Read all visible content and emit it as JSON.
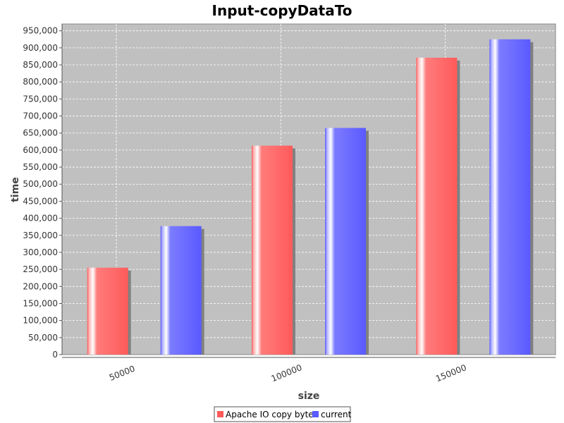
{
  "chart_data": {
    "type": "bar",
    "title": "Input-copyDataTo",
    "xlabel": "size",
    "ylabel": "time",
    "categories": [
      "50000",
      "100000",
      "150000"
    ],
    "series": [
      {
        "name": "Apache IO copy bytes",
        "color": "#ff5a5a",
        "values": [
          255000,
          613000,
          871000
        ]
      },
      {
        "name": "current",
        "color": "#5a5aff",
        "values": [
          377000,
          665000,
          925000
        ]
      }
    ],
    "ylim": [
      0,
      970000
    ],
    "yticks": [
      0,
      50000,
      100000,
      150000,
      200000,
      250000,
      300000,
      350000,
      400000,
      450000,
      500000,
      550000,
      600000,
      650000,
      700000,
      750000,
      800000,
      850000,
      900000,
      950000
    ],
    "ytick_labels": [
      "0",
      "50,000",
      "100,000",
      "150,000",
      "200,000",
      "250,000",
      "300,000",
      "350,000",
      "400,000",
      "450,000",
      "500,000",
      "550,000",
      "600,000",
      "650,000",
      "700,000",
      "750,000",
      "800,000",
      "850,000",
      "900,000",
      "950,000"
    ],
    "grid": true,
    "legend": "bottom-center",
    "plot_background": "#c0c0c0"
  }
}
